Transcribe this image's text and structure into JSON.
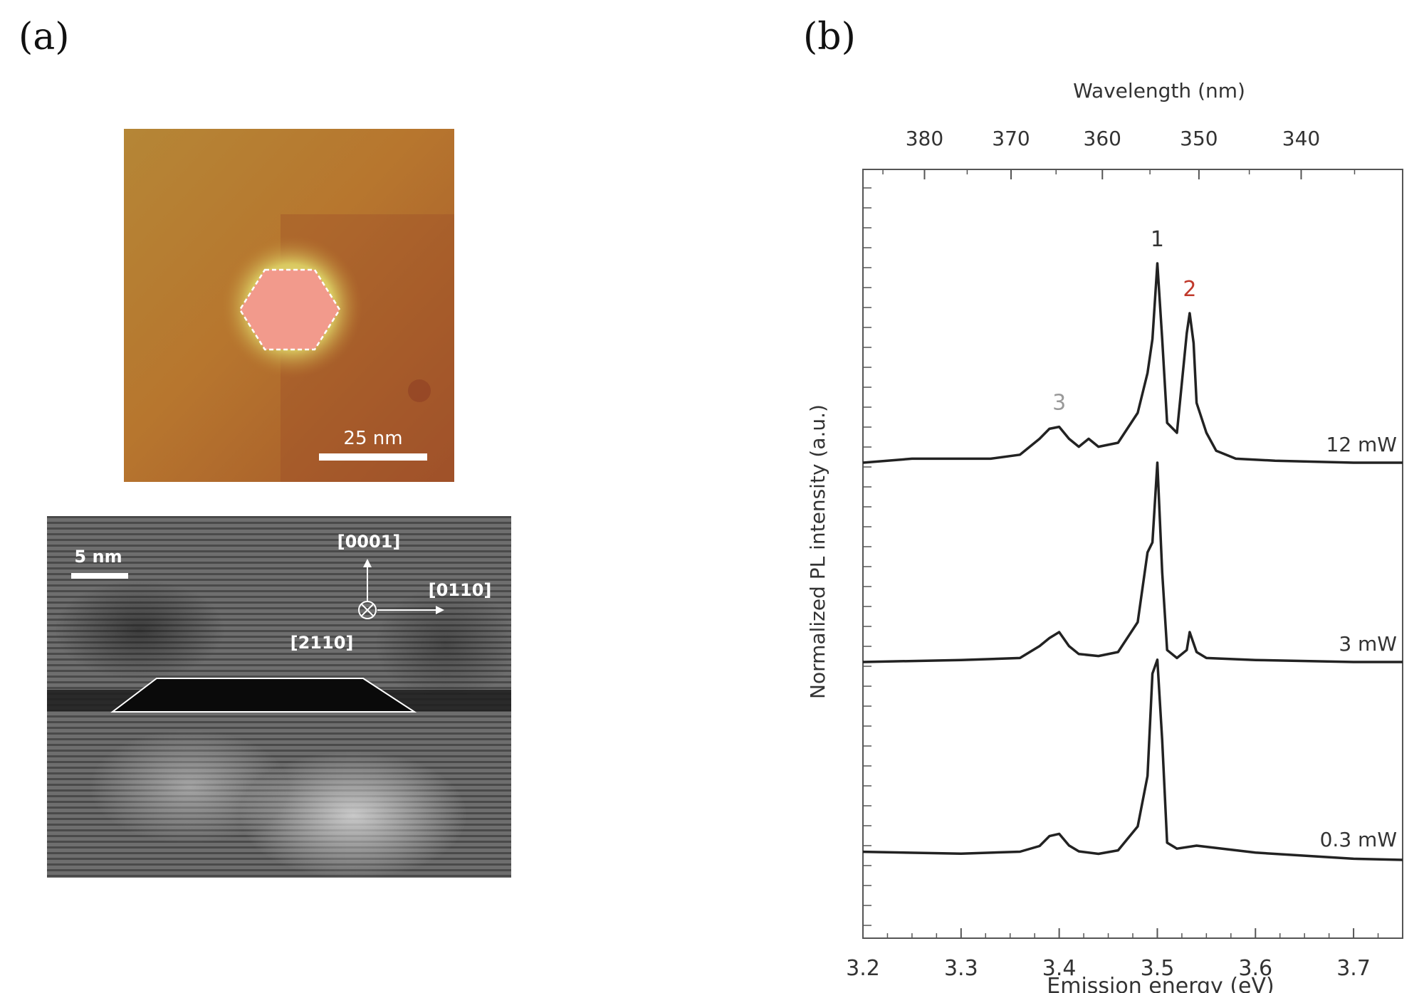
{
  "panels": {
    "a_label": "(a)",
    "b_label": "(b)"
  },
  "afm": {
    "scalebar_label": "25 nm"
  },
  "tem": {
    "scalebar_label": "5 nm",
    "dir_up": "[0001]",
    "dir_right": "[0110]",
    "dir_in": "[2110]"
  },
  "chart_data": {
    "type": "line",
    "xlabel": "Emission energy (eV)",
    "ylabel": "Normalized PL intensity (a.u.)",
    "top_axis_label": "Wavelength (nm)",
    "xlim": [
      3.2,
      3.75
    ],
    "x_ticks": [
      "3.2",
      "3.3",
      "3.4",
      "3.5",
      "3.6",
      "3.7"
    ],
    "top_ticks": [
      "380",
      "370",
      "360",
      "350",
      "340"
    ],
    "grid": false,
    "peak_labels": [
      {
        "text": "1",
        "x": 3.5,
        "color": "#333333"
      },
      {
        "text": "2",
        "x": 3.533,
        "color": "#c0392b"
      },
      {
        "text": "3",
        "x": 3.4,
        "color": "#999999"
      }
    ],
    "series": [
      {
        "name": "12 mW",
        "offset": 2,
        "x": [
          3.2,
          3.25,
          3.3,
          3.33,
          3.36,
          3.38,
          3.39,
          3.4,
          3.41,
          3.42,
          3.43,
          3.44,
          3.46,
          3.48,
          3.49,
          3.495,
          3.5,
          3.505,
          3.51,
          3.52,
          3.525,
          3.53,
          3.533,
          3.537,
          3.54,
          3.55,
          3.56,
          3.58,
          3.62,
          3.7,
          3.75
        ],
        "values": [
          0.0,
          0.02,
          0.02,
          0.02,
          0.04,
          0.12,
          0.17,
          0.18,
          0.12,
          0.08,
          0.12,
          0.08,
          0.1,
          0.25,
          0.45,
          0.62,
          1.0,
          0.62,
          0.2,
          0.15,
          0.4,
          0.65,
          0.75,
          0.6,
          0.3,
          0.15,
          0.06,
          0.02,
          0.01,
          0.0,
          0.0
        ]
      },
      {
        "name": "3 mW",
        "offset": 1,
        "x": [
          3.2,
          3.3,
          3.36,
          3.38,
          3.39,
          3.4,
          3.41,
          3.42,
          3.44,
          3.46,
          3.48,
          3.49,
          3.495,
          3.5,
          3.505,
          3.51,
          3.52,
          3.53,
          3.533,
          3.54,
          3.55,
          3.6,
          3.7,
          3.75
        ],
        "values": [
          0.0,
          0.01,
          0.02,
          0.08,
          0.12,
          0.15,
          0.08,
          0.04,
          0.03,
          0.05,
          0.2,
          0.55,
          0.6,
          1.0,
          0.45,
          0.06,
          0.02,
          0.06,
          0.15,
          0.05,
          0.02,
          0.01,
          0.0,
          0.0
        ]
      },
      {
        "name": "0.3 mW",
        "offset": 0,
        "x": [
          3.2,
          3.3,
          3.36,
          3.38,
          3.39,
          3.4,
          3.41,
          3.42,
          3.44,
          3.46,
          3.48,
          3.49,
          3.495,
          3.5,
          3.505,
          3.51,
          3.52,
          3.54,
          3.6,
          3.7,
          3.75
        ],
        "values": [
          0.03,
          0.03,
          0.04,
          0.06,
          0.1,
          0.11,
          0.06,
          0.04,
          0.03,
          0.04,
          0.15,
          0.4,
          0.92,
          1.0,
          0.6,
          0.08,
          0.04,
          0.05,
          0.02,
          0.0,
          0.0
        ]
      }
    ]
  }
}
